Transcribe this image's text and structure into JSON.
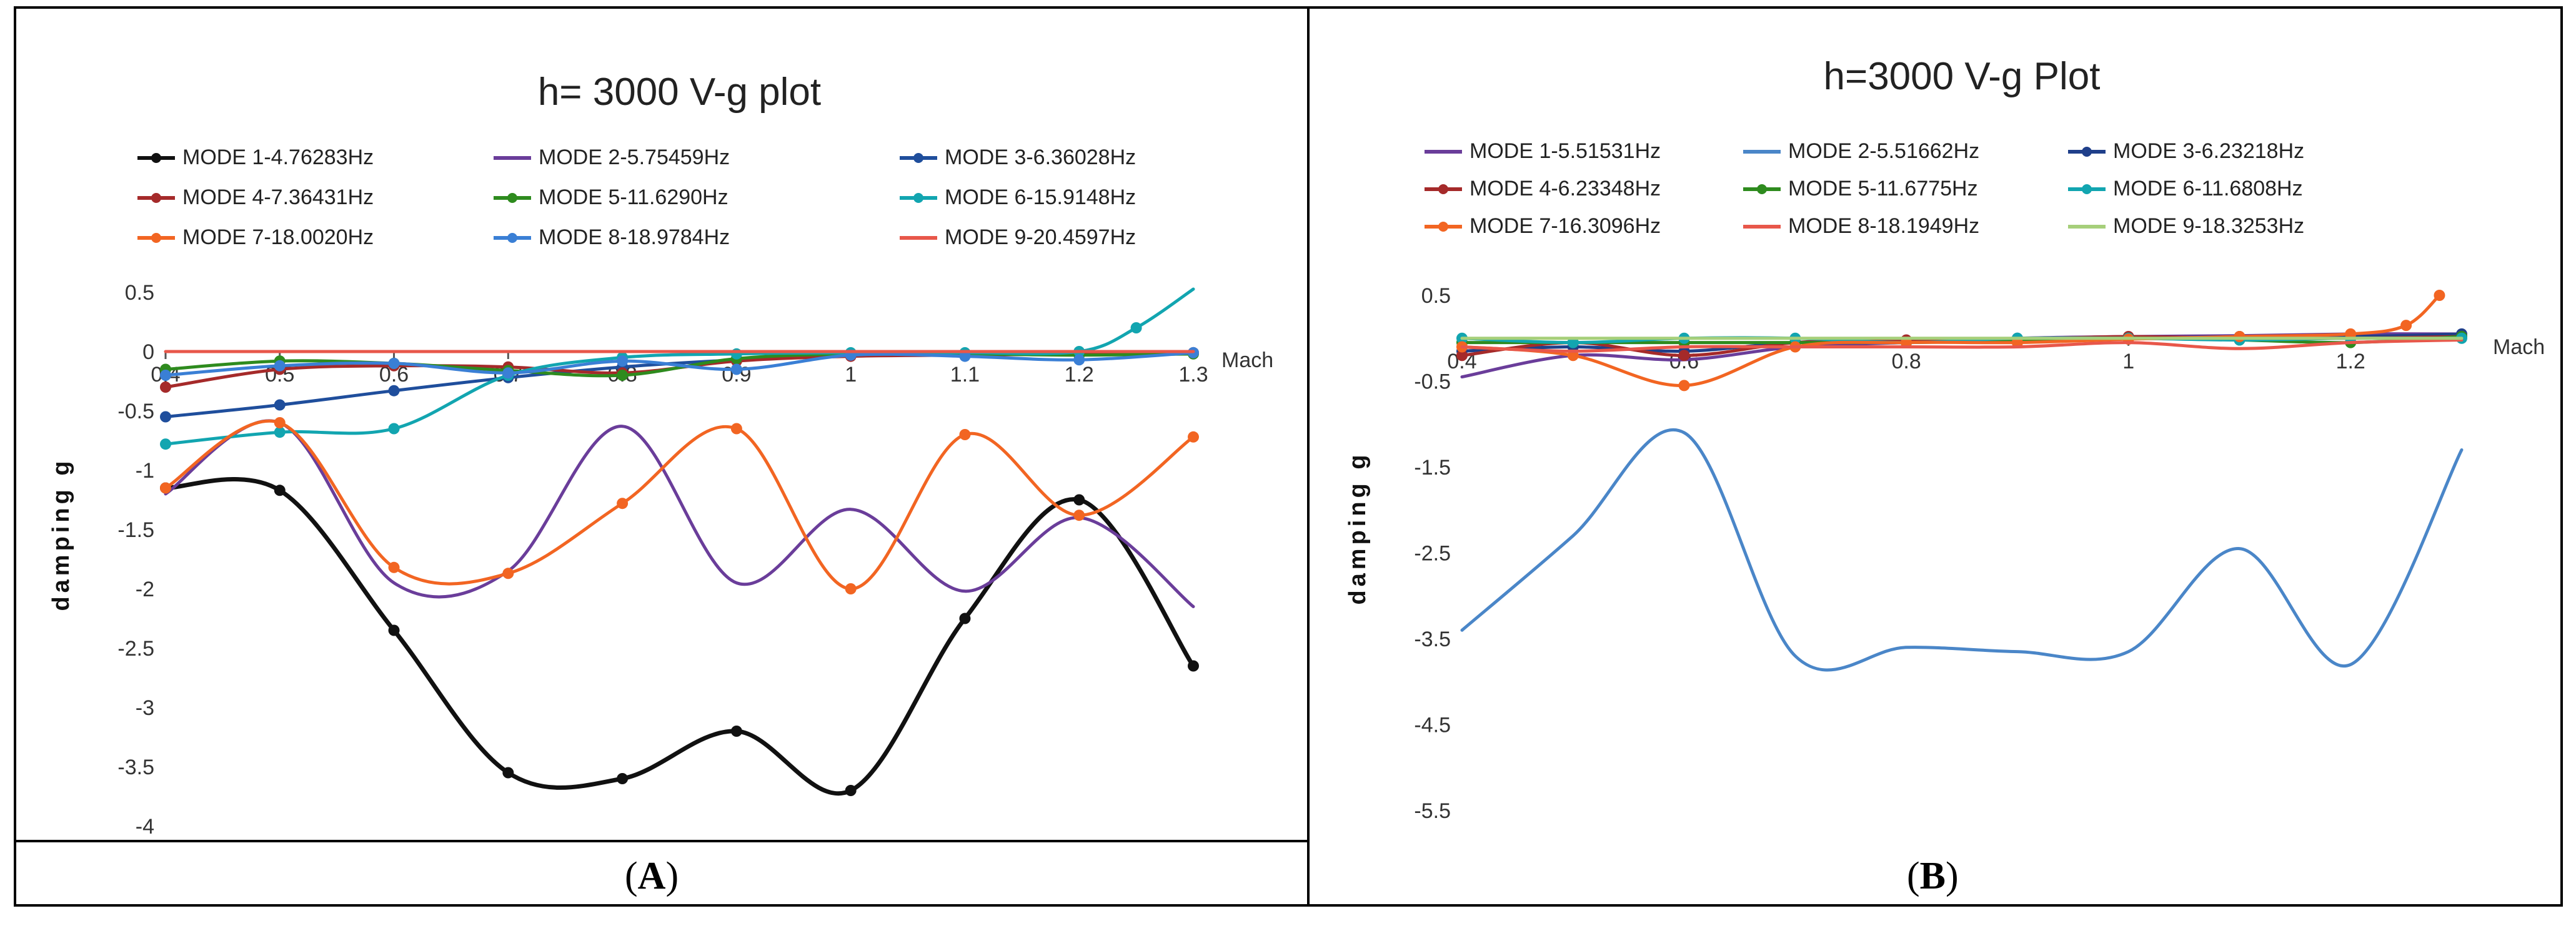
{
  "panels": [
    {
      "id": "A",
      "label": "A",
      "chart_data": {
        "type": "line",
        "title": "h= 3000 V-g plot",
        "xlabel": "Mach",
        "ylabel": "damping g",
        "xlim": [
          0.4,
          1.3
        ],
        "ylim": [
          -4,
          0.5
        ],
        "xticks": [
          0.4,
          0.5,
          0.6,
          0.7,
          0.8,
          0.9,
          1,
          1.1,
          1.2,
          1.3
        ],
        "xtick_labels": [
          "0.4",
          "0.5",
          "0.6",
          "0.7",
          "0.8",
          "0.9",
          "1",
          "1.1",
          "1.2",
          "1.3"
        ],
        "yticks": [
          0.5,
          0,
          -0.5,
          -1,
          -1.5,
          -2,
          -2.5,
          -3,
          -3.5,
          -4
        ],
        "ytick_labels": [
          "0.5",
          "0",
          "-0.5",
          "-1",
          "-1.5",
          "-2",
          "-2.5",
          "-3",
          "-3.5",
          "-4"
        ],
        "legend_position": "top",
        "series": [
          {
            "name": "MODE 1-4.76283Hz",
            "color": "#111111",
            "marker": true,
            "x": [
              0.4,
              0.5,
              0.6,
              0.7,
              0.8,
              0.9,
              1,
              1.1,
              1.2,
              1.3
            ],
            "y": [
              -1.15,
              -1.17,
              -2.35,
              -3.55,
              -3.6,
              -3.2,
              -3.7,
              -2.25,
              -1.25,
              -2.65
            ]
          },
          {
            "name": "MODE 2-5.75459Hz",
            "color": "#6a3d9a",
            "marker": false,
            "x": [
              0.4,
              0.5,
              0.6,
              0.7,
              0.8,
              0.9,
              1,
              1.1,
              1.2,
              1.3
            ],
            "y": [
              -1.2,
              -0.6,
              -1.95,
              -1.85,
              -0.63,
              -1.95,
              -1.33,
              -2.02,
              -1.4,
              -2.15
            ]
          },
          {
            "name": "MODE 3-6.36028Hz",
            "color": "#1f4e9c",
            "marker": true,
            "x": [
              0.4,
              0.5,
              0.6,
              0.7,
              0.8,
              0.9,
              1,
              1.1,
              1.2,
              1.3
            ],
            "y": [
              -0.55,
              -0.45,
              -0.33,
              -0.22,
              -0.13,
              -0.07,
              -0.03,
              -0.02,
              -0.02,
              -0.01
            ]
          },
          {
            "name": "MODE 4-7.36431Hz",
            "color": "#a52a2a",
            "marker": true,
            "x": [
              0.4,
              0.5,
              0.6,
              0.7,
              0.8,
              0.9,
              1,
              1.1,
              1.2,
              1.3
            ],
            "y": [
              -0.3,
              -0.15,
              -0.12,
              -0.13,
              -0.18,
              -0.08,
              -0.04,
              -0.03,
              -0.02,
              -0.01
            ]
          },
          {
            "name": "MODE 5-11.6290Hz",
            "color": "#2e8b1e",
            "marker": true,
            "x": [
              0.4,
              0.5,
              0.6,
              0.7,
              0.8,
              0.9,
              1,
              1.1,
              1.2,
              1.3
            ],
            "y": [
              -0.15,
              -0.08,
              -0.1,
              -0.16,
              -0.2,
              -0.06,
              -0.02,
              -0.02,
              -0.03,
              -0.02
            ]
          },
          {
            "name": "MODE 6-15.9148Hz",
            "color": "#12a5b0",
            "marker": true,
            "x": [
              0.4,
              0.5,
              0.6,
              0.7,
              0.8,
              0.9,
              1,
              1.1,
              1.2,
              1.25,
              1.3
            ],
            "y": [
              -0.78,
              -0.68,
              -0.65,
              -0.2,
              -0.05,
              -0.02,
              -0.01,
              -0.01,
              0.0,
              0.2,
              0.6
            ]
          },
          {
            "name": "MODE 7-18.0020Hz",
            "color": "#f26522",
            "marker": true,
            "x": [
              0.4,
              0.5,
              0.6,
              0.7,
              0.8,
              0.9,
              1,
              1.1,
              1.2,
              1.3
            ],
            "y": [
              -1.15,
              -0.6,
              -1.82,
              -1.87,
              -1.28,
              -0.65,
              -2.0,
              -0.7,
              -1.38,
              -0.72
            ]
          },
          {
            "name": "MODE 8-18.9784Hz",
            "color": "#3a7fd5",
            "marker": true,
            "x": [
              0.4,
              0.5,
              0.6,
              0.7,
              0.8,
              0.9,
              1,
              1.1,
              1.2,
              1.3
            ],
            "y": [
              -0.2,
              -0.12,
              -0.1,
              -0.18,
              -0.08,
              -0.15,
              -0.03,
              -0.04,
              -0.07,
              -0.01
            ]
          },
          {
            "name": "MODE 9-20.4597Hz",
            "color": "#e8574a",
            "marker": false,
            "x": [
              0.4,
              0.5,
              0.6,
              0.7,
              0.8,
              0.9,
              1,
              1.1,
              1.2,
              1.3
            ],
            "y": [
              0.0,
              0.0,
              0.0,
              0.0,
              0.0,
              0.0,
              0.0,
              0.0,
              0.0,
              0.0
            ]
          }
        ]
      }
    },
    {
      "id": "B",
      "label": "B",
      "chart_data": {
        "type": "line",
        "title": "h=3000 V-g Plot",
        "xlabel": "Mach",
        "ylabel": "damping g",
        "xlim": [
          0.4,
          1.3
        ],
        "ylim": [
          -5.5,
          0.5
        ],
        "xticks": [
          0.4,
          0.6,
          0.8,
          1,
          1.2
        ],
        "xtick_labels": [
          "0.4",
          "0.6",
          "0.8",
          "1",
          "1.2"
        ],
        "yticks": [
          0.5,
          -0.5,
          -1.5,
          -2.5,
          -3.5,
          -4.5,
          -5.5
        ],
        "ytick_labels": [
          "0.5",
          "-0.5",
          "-1.5",
          "-2.5",
          "-3.5",
          "-4.5",
          "-5.5"
        ],
        "legend_position": "top",
        "series": [
          {
            "name": "MODE 1-5.51531Hz",
            "color": "#6a3d9a",
            "marker": false,
            "x": [
              0.4,
              0.5,
              0.6,
              0.7,
              0.8,
              0.9,
              1,
              1.1,
              1.2,
              1.3
            ],
            "y": [
              -0.45,
              -0.2,
              -0.25,
              -0.1,
              -0.05,
              0.0,
              0.02,
              0.03,
              0.05,
              0.05
            ]
          },
          {
            "name": "MODE 2-5.51662Hz",
            "color": "#4a86c8",
            "marker": false,
            "x": [
              0.4,
              0.5,
              0.6,
              0.7,
              0.8,
              0.9,
              1,
              1.1,
              1.2,
              1.3
            ],
            "y": [
              -3.4,
              -2.3,
              -1.1,
              -3.7,
              -3.6,
              -3.65,
              -3.65,
              -2.45,
              -3.8,
              -1.3
            ]
          },
          {
            "name": "MODE 3-6.23218Hz",
            "color": "#1f3f8a",
            "marker": true,
            "x": [
              0.4,
              0.5,
              0.6,
              0.7,
              0.8,
              0.9,
              1,
              1.1,
              1.2,
              1.3
            ],
            "y": [
              -0.15,
              -0.1,
              -0.15,
              -0.05,
              -0.05,
              0.0,
              0.0,
              0.02,
              0.02,
              0.05
            ]
          },
          {
            "name": "MODE 4-6.23348Hz",
            "color": "#a52a2a",
            "marker": true,
            "x": [
              0.4,
              0.5,
              0.6,
              0.7,
              0.8,
              0.9,
              1,
              1.1,
              1.2,
              1.3
            ],
            "y": [
              -0.2,
              -0.05,
              -0.2,
              -0.05,
              -0.02,
              -0.01,
              0.02,
              0.0,
              0.0,
              0.02
            ]
          },
          {
            "name": "MODE 5-11.6775Hz",
            "color": "#2e8b1e",
            "marker": true,
            "x": [
              0.4,
              0.5,
              0.6,
              0.7,
              0.8,
              0.9,
              1,
              1.1,
              1.2,
              1.3
            ],
            "y": [
              -0.05,
              -0.05,
              -0.05,
              -0.05,
              -0.05,
              -0.03,
              0.0,
              -0.02,
              -0.05,
              0.02
            ]
          },
          {
            "name": "MODE 6-11.6808Hz",
            "color": "#12a5b0",
            "marker": true,
            "x": [
              0.4,
              0.5,
              0.6,
              0.7,
              0.8,
              0.9,
              1,
              1.1,
              1.2,
              1.3
            ],
            "y": [
              0.0,
              -0.05,
              0.0,
              0.0,
              -0.05,
              0.0,
              0.0,
              -0.02,
              0.0,
              0.0
            ]
          },
          {
            "name": "MODE 7-16.3096Hz",
            "color": "#f26522",
            "marker": true,
            "x": [
              0.4,
              0.5,
              0.6,
              0.7,
              0.8,
              0.9,
              1,
              1.1,
              1.2,
              1.25,
              1.28
            ],
            "y": [
              -0.1,
              -0.2,
              -0.55,
              -0.1,
              -0.05,
              -0.05,
              -0.01,
              0.02,
              0.05,
              0.15,
              0.5
            ]
          },
          {
            "name": "MODE 8-18.1949Hz",
            "color": "#e8574a",
            "marker": false,
            "x": [
              0.4,
              0.5,
              0.6,
              0.7,
              0.8,
              0.9,
              1,
              1.1,
              1.2,
              1.3
            ],
            "y": [
              -0.1,
              -0.15,
              -0.1,
              -0.1,
              -0.1,
              -0.1,
              -0.05,
              -0.12,
              -0.05,
              -0.02
            ]
          },
          {
            "name": "MODE 9-18.3253Hz",
            "color": "#a6cf7a",
            "marker": false,
            "x": [
              0.4,
              0.5,
              0.6,
              0.7,
              0.8,
              0.9,
              1,
              1.1,
              1.2,
              1.3
            ],
            "y": [
              0.0,
              0.0,
              0.0,
              0.0,
              0.0,
              0.0,
              0.0,
              0.0,
              0.0,
              0.0
            ]
          }
        ]
      }
    }
  ]
}
